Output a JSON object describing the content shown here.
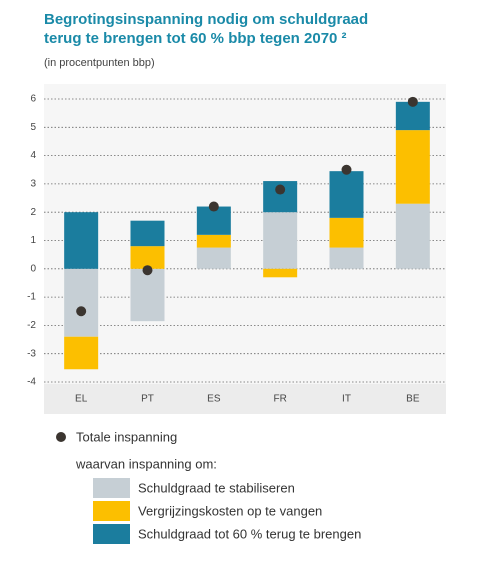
{
  "chart_data": {
    "type": "bar",
    "title": [
      "Begrotingsinspanning nodig om schuldgraad",
      "terug te brengen tot 60 % bbp tegen 2070 ²"
    ],
    "subtitle": "(in procentpunten bbp)",
    "categories": [
      "EL",
      "PT",
      "ES",
      "FR",
      "IT",
      "BE"
    ],
    "stacked": true,
    "grid": true,
    "ylim": [
      -4,
      6
    ],
    "yticks": [
      -4,
      -3,
      -2,
      -1,
      0,
      1,
      2,
      3,
      4,
      5,
      6
    ],
    "legend_subheading": "waarvan inspanning om:",
    "points": {
      "name": "Totale inspanning",
      "color": "#3b3530",
      "values": [
        -1.5,
        -0.05,
        2.2,
        2.8,
        3.5,
        5.9
      ]
    },
    "series": [
      {
        "name": "Schuldgraad te stabiliseren",
        "color": "#c6cfd5",
        "values": [
          -2.4,
          -1.85,
          0.75,
          2.0,
          0.75,
          2.3
        ]
      },
      {
        "name": "Vergrijzingskosten op te vangen",
        "color": "#fcbf00",
        "values": [
          -1.15,
          0.8,
          0.45,
          -0.3,
          1.05,
          2.6
        ]
      },
      {
        "name": "Schuldgraad tot 60 % terug te brengen",
        "color": "#1b7d9e",
        "values": [
          2.0,
          0.9,
          1.0,
          1.1,
          1.65,
          1.0
        ]
      }
    ]
  }
}
